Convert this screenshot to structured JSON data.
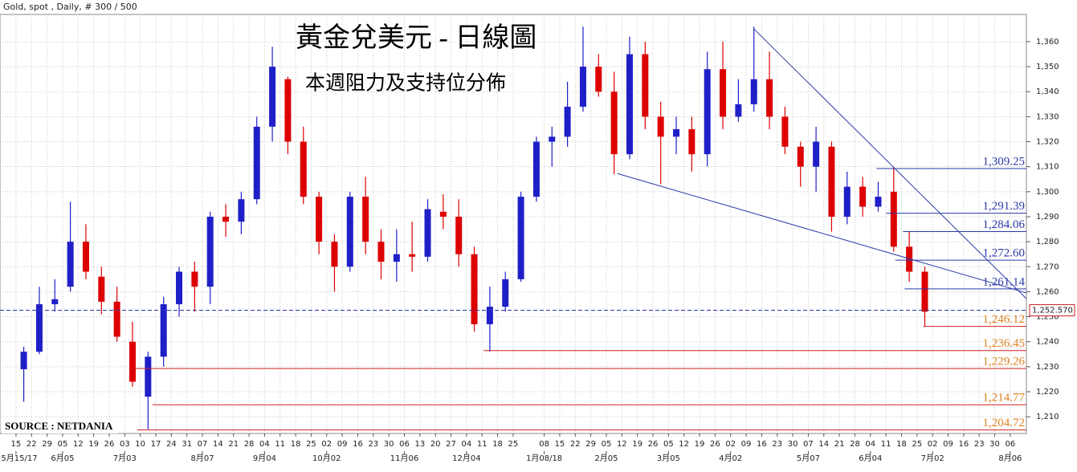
{
  "chart_data": {
    "type": "candlestick",
    "header": "Gold, spot , Daily, # 300 / 500",
    "title": "黃金兌美元 - 日線圖",
    "subtitle": "本週阻力及支持位分佈",
    "source": "SOURCE : NETDANIA",
    "up_color": "#1f1fc8",
    "down_color": "#dd0000",
    "grid": true,
    "xlim": [
      -1.03,
      65.04
    ],
    "ylim": [
      1203.3,
      1370.9
    ],
    "yticks": [
      {
        "value": 1210,
        "label": "1,210"
      },
      {
        "value": 1220,
        "label": "1,220"
      },
      {
        "value": 1230,
        "label": "1,230"
      },
      {
        "value": 1240,
        "label": "1,240"
      },
      {
        "value": 1250,
        "label": "1,250"
      },
      {
        "value": 1260,
        "label": "1,260"
      },
      {
        "value": 1270,
        "label": "1,270"
      },
      {
        "value": 1280,
        "label": "1,280"
      },
      {
        "value": 1290,
        "label": "1,290"
      },
      {
        "value": 1300,
        "label": "1,300"
      },
      {
        "value": 1310,
        "label": "1,310"
      },
      {
        "value": 1320,
        "label": "1,320"
      },
      {
        "value": 1330,
        "label": "1,330"
      },
      {
        "value": 1340,
        "label": "1,340"
      },
      {
        "value": 1350,
        "label": "1,350"
      },
      {
        "value": 1360,
        "label": "1,360"
      }
    ],
    "xticks": [
      {
        "value": 0,
        "label": "15"
      },
      {
        "value": 1,
        "label": "22"
      },
      {
        "value": 2,
        "label": "29"
      },
      {
        "value": 3,
        "label": "05"
      },
      {
        "value": 4,
        "label": "12"
      },
      {
        "value": 5,
        "label": "19"
      },
      {
        "value": 6,
        "label": "26"
      },
      {
        "value": 7,
        "label": "03"
      },
      {
        "value": 8,
        "label": "10"
      },
      {
        "value": 9,
        "label": "17"
      },
      {
        "value": 10,
        "label": "24"
      },
      {
        "value": 11,
        "label": "31"
      },
      {
        "value": 12,
        "label": "07"
      },
      {
        "value": 13,
        "label": "14"
      },
      {
        "value": 14,
        "label": "21"
      },
      {
        "value": 15,
        "label": "28"
      },
      {
        "value": 16,
        "label": "04"
      },
      {
        "value": 17,
        "label": "11"
      },
      {
        "value": 18,
        "label": "18"
      },
      {
        "value": 19,
        "label": "25"
      },
      {
        "value": 20,
        "label": "02"
      },
      {
        "value": 21,
        "label": "09"
      },
      {
        "value": 22,
        "label": "16"
      },
      {
        "value": 23,
        "label": "23"
      },
      {
        "value": 24,
        "label": "30"
      },
      {
        "value": 25,
        "label": "06"
      },
      {
        "value": 26,
        "label": "13"
      },
      {
        "value": 27,
        "label": "20"
      },
      {
        "value": 28,
        "label": "27"
      },
      {
        "value": 29,
        "label": "04"
      },
      {
        "value": 30,
        "label": "11"
      },
      {
        "value": 31,
        "label": "18"
      },
      {
        "value": 32,
        "label": "25"
      },
      {
        "value": 34,
        "label": "08"
      },
      {
        "value": 35,
        "label": "15"
      },
      {
        "value": 36,
        "label": "22"
      },
      {
        "value": 37,
        "label": "29"
      },
      {
        "value": 38,
        "label": "05"
      },
      {
        "value": 39,
        "label": "12"
      },
      {
        "value": 40,
        "label": "19"
      },
      {
        "value": 41,
        "label": "26"
      },
      {
        "value": 42,
        "label": "05"
      },
      {
        "value": 43,
        "label": "12"
      },
      {
        "value": 44,
        "label": "19"
      },
      {
        "value": 45,
        "label": "26"
      },
      {
        "value": 46,
        "label": "02"
      },
      {
        "value": 47,
        "label": "09"
      },
      {
        "value": 48,
        "label": "16"
      },
      {
        "value": 49,
        "label": "23"
      },
      {
        "value": 50,
        "label": "30"
      },
      {
        "value": 51,
        "label": "07"
      },
      {
        "value": 52,
        "label": "14"
      },
      {
        "value": 53,
        "label": "21"
      },
      {
        "value": 54,
        "label": "28"
      },
      {
        "value": 55,
        "label": "04"
      },
      {
        "value": 56,
        "label": "11"
      },
      {
        "value": 57,
        "label": "18"
      },
      {
        "value": 58,
        "label": "25"
      },
      {
        "value": 59,
        "label": "02"
      },
      {
        "value": 60,
        "label": "09"
      },
      {
        "value": 61,
        "label": "16"
      },
      {
        "value": 62,
        "label": "23"
      },
      {
        "value": 63,
        "label": "30"
      },
      {
        "value": 64,
        "label": "06"
      }
    ],
    "month_labels": [
      {
        "value": 0,
        "label": "5月15/17"
      },
      {
        "value": 3,
        "label": "6月05"
      },
      {
        "value": 7,
        "label": "7月03"
      },
      {
        "value": 12,
        "label": "8月07"
      },
      {
        "value": 16,
        "label": "9月04"
      },
      {
        "value": 20,
        "label": "10月02"
      },
      {
        "value": 25,
        "label": "11月06"
      },
      {
        "value": 29,
        "label": "12月04"
      },
      {
        "value": 34,
        "label": "1月08/18"
      },
      {
        "value": 38,
        "label": "2月05"
      },
      {
        "value": 42,
        "label": "3月05"
      },
      {
        "value": 46,
        "label": "4月02"
      },
      {
        "value": 51,
        "label": "5月07"
      },
      {
        "value": 55,
        "label": "6月04"
      },
      {
        "value": 59,
        "label": "7月02"
      },
      {
        "value": 64,
        "label": "8月06"
      }
    ],
    "candles": {
      "x": [
        0.5,
        1.5,
        2.5,
        3.5,
        4.5,
        5.5,
        6.5,
        7.5,
        8.5,
        9.5,
        10.5,
        11.5,
        12.5,
        13.5,
        14.5,
        15.5,
        16.5,
        17.5,
        18.5,
        19.5,
        20.5,
        21.5,
        22.5,
        23.5,
        24.5,
        25.5,
        26.5,
        27.5,
        28.5,
        29.5,
        30.5,
        31.5,
        32.5,
        33.5,
        34.5,
        35.5,
        36.5,
        37.5,
        38.5,
        39.5,
        40.5,
        41.5,
        42.5,
        43.5,
        44.5,
        45.5,
        46.5,
        47.5,
        48.5,
        49.5,
        50.5,
        51.5,
        52.5,
        53.5,
        54.5,
        55.5,
        56.5,
        57.5,
        58.5
      ],
      "open": [
        1229,
        1236,
        1255,
        1262,
        1280,
        1266,
        1256,
        1240,
        1218,
        1234,
        1255,
        1268,
        1262,
        1290,
        1288,
        1297,
        1326,
        1345,
        1320,
        1298,
        1280,
        1270,
        1298,
        1280,
        1272,
        1275,
        1274,
        1292,
        1290,
        1275,
        1247,
        1254,
        1265,
        1298,
        1320,
        1322,
        1334,
        1350,
        1340,
        1315,
        1355,
        1330,
        1322,
        1325,
        1315,
        1349,
        1330,
        1335,
        1345,
        1330,
        1318,
        1310,
        1318,
        1290,
        1302,
        1294,
        1300,
        1278,
        1268
      ],
      "high": [
        1238,
        1262,
        1265,
        1296,
        1287,
        1270,
        1262,
        1248,
        1236,
        1258,
        1270,
        1272,
        1292,
        1295,
        1300,
        1330,
        1358,
        1346,
        1326,
        1300,
        1283,
        1300,
        1306,
        1285,
        1285,
        1288,
        1297,
        1299,
        1297,
        1278,
        1262,
        1268,
        1300,
        1322,
        1326,
        1344,
        1366,
        1355,
        1348,
        1362,
        1360,
        1336,
        1330,
        1330,
        1356,
        1360,
        1345,
        1366,
        1356,
        1334,
        1320,
        1326,
        1320,
        1308,
        1306,
        1304,
        1310,
        1284,
        1270
      ],
      "low": [
        1216,
        1235,
        1252,
        1260,
        1265,
        1251,
        1240,
        1222,
        1205,
        1230,
        1250,
        1252,
        1255,
        1282,
        1283,
        1295,
        1320,
        1315,
        1295,
        1275,
        1260,
        1268,
        1275,
        1265,
        1264,
        1268,
        1272,
        1285,
        1270,
        1244,
        1236,
        1252,
        1264,
        1296,
        1310,
        1318,
        1332,
        1338,
        1307,
        1313,
        1325,
        1303,
        1315,
        1308,
        1310,
        1325,
        1328,
        1332,
        1325,
        1315,
        1302,
        1300,
        1284,
        1287,
        1290,
        1292,
        1276,
        1264,
        1246
      ],
      "close": [
        1236,
        1255,
        1257,
        1280,
        1268,
        1256,
        1242,
        1224,
        1234,
        1255,
        1268,
        1262,
        1290,
        1288,
        1297,
        1326,
        1350,
        1320,
        1298,
        1280,
        1270,
        1298,
        1280,
        1272,
        1275,
        1274,
        1293,
        1290,
        1275,
        1247,
        1254,
        1265,
        1298,
        1320,
        1322,
        1334,
        1350,
        1340,
        1315,
        1355,
        1330,
        1322,
        1325,
        1315,
        1349,
        1330,
        1335,
        1345,
        1330,
        1318,
        1310,
        1320,
        1290,
        1302,
        1294,
        1298,
        1278,
        1268,
        1252
      ]
    },
    "trend_lines": [
      {
        "x": [
          38.7,
          65.04
        ],
        "y": [
          1307.3,
          1259.5
        ]
      },
      {
        "x": [
          47.5,
          65.04
        ],
        "y": [
          1365.1,
          1257.2
        ]
      }
    ],
    "resistance_color": "#2a3aa8",
    "support_color": "#e08020",
    "resistance": [
      {
        "value": 1309.25,
        "label": "1,309.25",
        "start": 55.4
      },
      {
        "value": 1291.39,
        "label": "1,291.39",
        "start": 56
      },
      {
        "value": 1284.06,
        "label": "1,284.06",
        "start": 57.1
      },
      {
        "value": 1272.6,
        "label": "1,272.60",
        "start": 56.6
      },
      {
        "value": 1261.14,
        "label": "1,261.14",
        "start": 57.2
      }
    ],
    "support": [
      {
        "value": 1246.12,
        "label": "1,246.12",
        "start": 58.4
      },
      {
        "value": 1236.45,
        "label": "1,236.45",
        "start": 30.1
      },
      {
        "value": 1229.26,
        "label": "1,229.26",
        "start": 7.4
      },
      {
        "value": 1214.77,
        "label": "1,214.77",
        "start": 8.8
      },
      {
        "value": 1204.72,
        "label": "1,204.72",
        "start": 7.8
      }
    ],
    "last_price": {
      "value": 1252.57,
      "label": "1,252.570"
    }
  }
}
